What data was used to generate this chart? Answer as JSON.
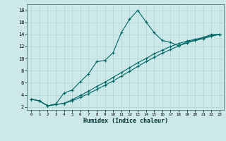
{
  "xlabel": "Humidex (Indice chaleur)",
  "background_color": "#cce8e8",
  "grid_color": "#b0d4d4",
  "line_color": "#006666",
  "xlim": [
    -0.5,
    23.5
  ],
  "ylim": [
    1.5,
    19.0
  ],
  "xticks": [
    0,
    1,
    2,
    3,
    4,
    5,
    6,
    7,
    8,
    9,
    10,
    11,
    12,
    13,
    14,
    15,
    16,
    17,
    18,
    19,
    20,
    21,
    22,
    23
  ],
  "yticks": [
    2,
    4,
    6,
    8,
    10,
    12,
    14,
    16,
    18
  ],
  "curve1_x": [
    0,
    1,
    2,
    3,
    4,
    5,
    6,
    7,
    8,
    9,
    10,
    11,
    12,
    13,
    14,
    15,
    16,
    17,
    18,
    19,
    20,
    21,
    22,
    23
  ],
  "curve1_y": [
    3.3,
    3.0,
    2.2,
    2.5,
    4.3,
    4.8,
    6.2,
    7.5,
    9.5,
    9.7,
    11.0,
    14.3,
    16.5,
    18.0,
    16.1,
    14.3,
    13.0,
    12.7,
    12.1,
    12.8,
    13.0,
    13.5,
    14.0,
    14.0
  ],
  "curve2_x": [
    0,
    1,
    2,
    3,
    4,
    5,
    6,
    7,
    8,
    9,
    10,
    11,
    12,
    13,
    14,
    15,
    16,
    17,
    18,
    19,
    20,
    21,
    22,
    23
  ],
  "curve2_y": [
    3.3,
    3.0,
    2.2,
    2.4,
    2.6,
    3.2,
    3.9,
    4.6,
    5.4,
    6.1,
    6.9,
    7.7,
    8.5,
    9.3,
    10.0,
    10.8,
    11.4,
    12.0,
    12.5,
    12.9,
    13.2,
    13.5,
    13.8,
    14.0
  ],
  "curve3_x": [
    0,
    1,
    2,
    3,
    4,
    5,
    6,
    7,
    8,
    9,
    10,
    11,
    12,
    13,
    14,
    15,
    16,
    17,
    18,
    19,
    20,
    21,
    22,
    23
  ],
  "curve3_y": [
    3.3,
    3.0,
    2.2,
    2.4,
    2.6,
    3.0,
    3.6,
    4.2,
    4.9,
    5.6,
    6.3,
    7.1,
    7.9,
    8.7,
    9.5,
    10.2,
    10.9,
    11.5,
    12.1,
    12.6,
    13.0,
    13.3,
    13.7,
    14.0
  ]
}
